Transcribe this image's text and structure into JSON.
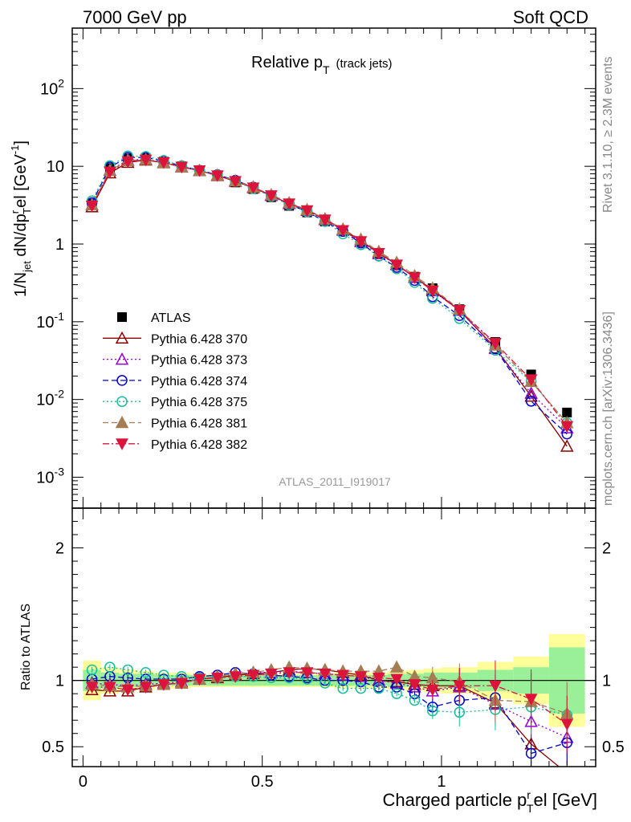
{
  "header": {
    "left": "7000 GeV pp",
    "right": "Soft QCD"
  },
  "side": {
    "top": "Rivet 3.1.10, ≥ 2.3M events",
    "bottom": "mcplots.cern.ch [arXiv:1306.3436]"
  },
  "analysis_label": "ATLAS_2011_I919017",
  "plot_title": "Relative p",
  "plot_title_sub": "T",
  "plot_title_note": "(track jets)",
  "ylabel_main": "1/N",
  "ylabel_main_sub": "jet",
  "ylabel_main_rest": " dN/dp",
  "ylabel_main_sup": "r",
  "ylabel_main_sub2": "T",
  "ylabel_main_end": "el [GeV",
  "ylabel_main_sup2": "-1",
  "ylabel_main_close": "]",
  "ylabel_ratio": "Ratio to ATLAS",
  "xlabel": "Charged particle p",
  "xlabel_sup": "r",
  "xlabel_sub": "T",
  "xlabel_end": "el [GeV]",
  "x_ticks": [
    "0",
    "0.5",
    "1"
  ],
  "y_ticks_main": [
    {
      "base": "10",
      "exp": "-3"
    },
    {
      "base": "10",
      "exp": "-2"
    },
    {
      "base": "10",
      "exp": "-1"
    },
    {
      "base": "1",
      "exp": ""
    },
    {
      "base": "10",
      "exp": ""
    },
    {
      "base": "10",
      "exp": "2"
    }
  ],
  "y_ticks_ratio": [
    "0.5",
    "1",
    "2"
  ],
  "chart_data": {
    "type": "scatter",
    "log_y": true,
    "xlim": [
      -0.03,
      1.43
    ],
    "ylim": [
      0.0004,
      600
    ],
    "ratio_ylim": [
      0.35,
      2.3
    ],
    "x": [
      0.025,
      0.075,
      0.125,
      0.175,
      0.225,
      0.275,
      0.325,
      0.375,
      0.425,
      0.475,
      0.525,
      0.575,
      0.625,
      0.675,
      0.725,
      0.775,
      0.825,
      0.875,
      0.925,
      0.975,
      1.05,
      1.15,
      1.25,
      1.35
    ],
    "x_edges": [
      0.0,
      0.05,
      0.1,
      0.15,
      0.2,
      0.25,
      0.3,
      0.35,
      0.4,
      0.45,
      0.5,
      0.55,
      0.6,
      0.65,
      0.7,
      0.75,
      0.8,
      0.85,
      0.9,
      0.95,
      1.0,
      1.1,
      1.2,
      1.3,
      1.4
    ],
    "band_inner": [
      0.08,
      0.06,
      0.05,
      0.05,
      0.04,
      0.04,
      0.04,
      0.04,
      0.04,
      0.04,
      0.04,
      0.04,
      0.04,
      0.04,
      0.04,
      0.04,
      0.04,
      0.05,
      0.05,
      0.06,
      0.06,
      0.08,
      0.1,
      0.25
    ],
    "band_outer": [
      0.15,
      0.1,
      0.08,
      0.07,
      0.06,
      0.06,
      0.05,
      0.05,
      0.05,
      0.05,
      0.05,
      0.05,
      0.05,
      0.05,
      0.06,
      0.06,
      0.06,
      0.07,
      0.08,
      0.09,
      0.1,
      0.14,
      0.18,
      0.35
    ],
    "series": [
      {
        "name": "ATLAS",
        "color": "#000000",
        "marker": "square",
        "line": "none",
        "values": [
          3.3,
          9.5,
          12.6,
          12.8,
          11.5,
          10.0,
          8.7,
          7.5,
          6.2,
          5.1,
          4.0,
          3.1,
          2.55,
          1.95,
          1.45,
          1.05,
          0.74,
          0.53,
          0.38,
          0.27,
          0.145,
          0.055,
          0.021,
          0.0068
        ]
      },
      {
        "name": "Pythia 6.428 370",
        "color": "#8B0000",
        "marker": "triangle-open",
        "line": "solid",
        "values": [
          3.0,
          8.2,
          11.2,
          12.0,
          11.1,
          9.8,
          8.8,
          7.6,
          6.4,
          5.3,
          4.2,
          3.3,
          2.75,
          2.1,
          1.55,
          1.1,
          0.77,
          0.55,
          0.37,
          0.26,
          0.14,
          0.046,
          0.011,
          0.0025
        ],
        "ratio": [
          0.93,
          0.92,
          0.92,
          0.95,
          0.97,
          0.98,
          1.01,
          1.02,
          1.04,
          1.05,
          1.06,
          1.08,
          1.09,
          1.08,
          1.06,
          1.04,
          1.0,
          0.99,
          0.97,
          0.96,
          0.96,
          0.83,
          0.52,
          0.3
        ]
      },
      {
        "name": "Pythia 6.428 373",
        "color": "#9400D3",
        "marker": "triangle-open",
        "line": "dotted",
        "values": [
          3.2,
          8.9,
          12.0,
          12.3,
          11.3,
          9.9,
          8.8,
          7.7,
          6.5,
          5.4,
          4.2,
          3.3,
          2.7,
          2.05,
          1.5,
          1.07,
          0.75,
          0.54,
          0.37,
          0.25,
          0.14,
          0.045,
          0.012,
          0.0043
        ],
        "ratio": [
          0.98,
          0.97,
          0.96,
          0.97,
          0.98,
          0.99,
          1.01,
          1.03,
          1.05,
          1.06,
          1.06,
          1.07,
          1.06,
          1.05,
          1.04,
          1.03,
          1.0,
          0.98,
          0.95,
          0.92,
          0.95,
          0.82,
          0.69,
          0.57
        ]
      },
      {
        "name": "Pythia 6.428 374",
        "color": "#0000CD",
        "marker": "circle-open",
        "line": "dashed",
        "values": [
          3.4,
          9.8,
          13.0,
          13.0,
          11.7,
          10.1,
          8.9,
          7.8,
          6.6,
          5.4,
          4.2,
          3.25,
          2.6,
          1.95,
          1.45,
          1.03,
          0.7,
          0.5,
          0.34,
          0.21,
          0.12,
          0.045,
          0.0095,
          0.0036
        ],
        "ratio": [
          1.01,
          1.03,
          1.02,
          1.01,
          1.01,
          1.01,
          1.03,
          1.04,
          1.06,
          1.05,
          1.04,
          1.03,
          1.02,
          1.0,
          1.0,
          0.99,
          0.95,
          0.95,
          0.9,
          0.8,
          0.85,
          0.87,
          0.45,
          0.53
        ]
      },
      {
        "name": "Pythia 6.428 375",
        "color": "#1ABC9C",
        "marker": "circle-open",
        "line": "dotted",
        "values": [
          3.6,
          10.2,
          13.6,
          13.4,
          11.9,
          10.2,
          8.9,
          7.7,
          6.4,
          5.2,
          4.1,
          3.2,
          2.6,
          1.95,
          1.35,
          0.98,
          0.7,
          0.48,
          0.32,
          0.2,
          0.11,
          0.043,
          0.017,
          0.005
        ],
        "ratio": [
          1.08,
          1.1,
          1.08,
          1.06,
          1.04,
          1.03,
          1.02,
          1.02,
          1.03,
          1.03,
          1.02,
          1.02,
          1.01,
          0.98,
          0.94,
          0.94,
          0.94,
          0.9,
          0.85,
          0.77,
          0.76,
          0.78,
          0.8,
          0.74
        ]
      },
      {
        "name": "Pythia 6.428 381",
        "color": "#A67C52",
        "marker": "triangle-filled",
        "line": "dashed",
        "values": [
          3.2,
          8.8,
          11.8,
          12.2,
          11.2,
          9.8,
          8.8,
          7.7,
          6.5,
          5.4,
          4.3,
          3.4,
          2.75,
          2.1,
          1.55,
          1.15,
          0.8,
          0.58,
          0.39,
          0.27,
          0.145,
          0.05,
          0.017,
          0.005
        ],
        "ratio": [
          0.97,
          0.96,
          0.95,
          0.96,
          0.97,
          0.98,
          1.01,
          1.03,
          1.05,
          1.06,
          1.08,
          1.1,
          1.09,
          1.08,
          1.07,
          1.07,
          1.07,
          1.1,
          1.03,
          1.02,
          0.99,
          0.85,
          0.84,
          0.75
        ]
      },
      {
        "name": "Pythia 6.428 382",
        "color": "#DC143C",
        "marker": "triangle-down-filled",
        "line": "dashdot",
        "values": [
          3.1,
          8.5,
          11.5,
          12.1,
          11.2,
          9.8,
          8.8,
          7.6,
          6.4,
          5.3,
          4.2,
          3.3,
          2.7,
          2.05,
          1.5,
          1.08,
          0.76,
          0.54,
          0.37,
          0.25,
          0.14,
          0.053,
          0.018,
          0.0045
        ],
        "ratio": [
          0.95,
          0.95,
          0.93,
          0.95,
          0.97,
          0.98,
          1.01,
          1.02,
          1.03,
          1.04,
          1.05,
          1.06,
          1.06,
          1.05,
          1.04,
          1.03,
          1.02,
          1.01,
          0.97,
          0.93,
          0.96,
          0.96,
          0.86,
          0.67
        ]
      }
    ]
  }
}
